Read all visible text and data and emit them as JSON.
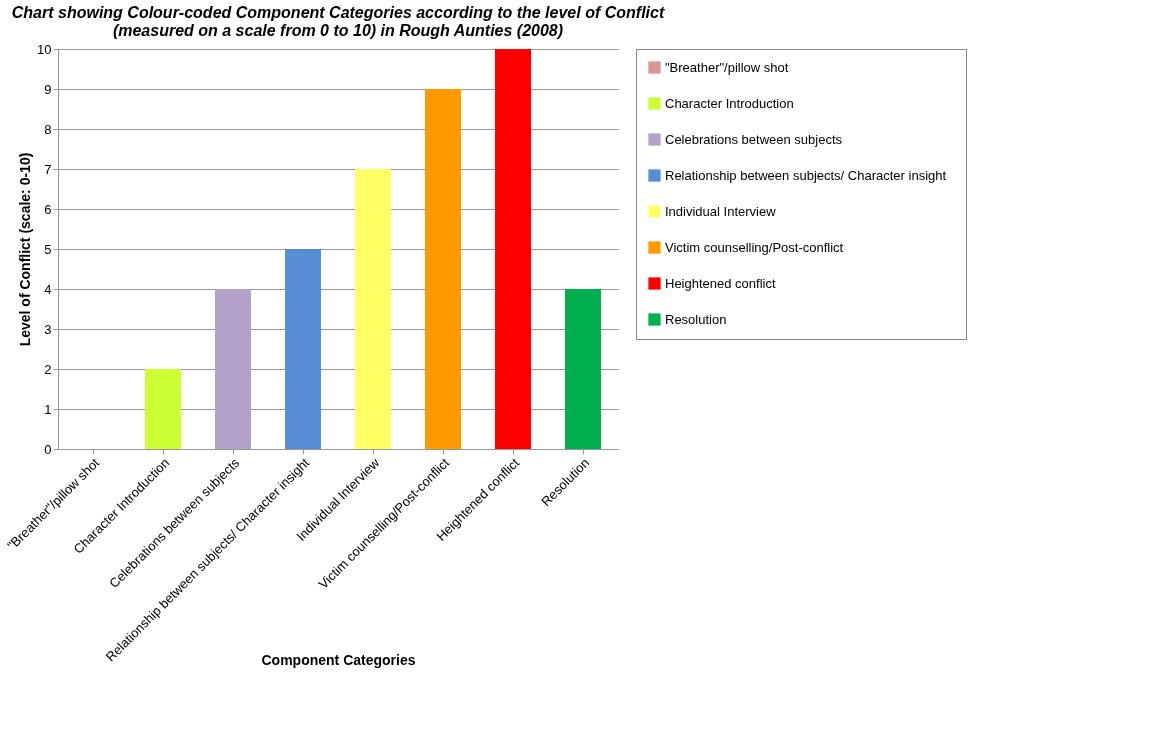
{
  "chart_data": {
    "type": "bar",
    "title": "Chart showing Colour-coded Component Categories according to the level of Conflict (measured on a scale from 0 to 10) in Rough Aunties (2008)",
    "xlabel": "Component Categories",
    "ylabel": "Level of Conflict (scale: 0-10)",
    "categories": [
      "\"Breather\"/pillow shot",
      "Character Introduction",
      "Celebrations between subjects",
      "Relationship between subjects/   Character insight",
      "Individual Interview",
      "Victim counselling/Post-conflict",
      "Heightened conflict",
      "Resolution"
    ],
    "series": [
      {
        "name": "\"Breather\"/pillow shot",
        "color": "#d99694",
        "values": [
          0,
          null,
          null,
          null,
          null,
          null,
          null,
          null
        ]
      },
      {
        "name": "Character Introduction",
        "color": "#ccff33",
        "values": [
          null,
          2,
          null,
          null,
          null,
          null,
          null,
          null
        ]
      },
      {
        "name": "Celebrations between subjects",
        "color": "#b3a2c7",
        "values": [
          null,
          null,
          4,
          null,
          null,
          null,
          null,
          null
        ]
      },
      {
        "name": "Relationship between subjects/   Character insight",
        "color": "#558ed5",
        "values": [
          null,
          null,
          null,
          5,
          null,
          null,
          null,
          null
        ]
      },
      {
        "name": "Individual Interview",
        "color": "#ffff66",
        "values": [
          null,
          null,
          null,
          null,
          7,
          null,
          null,
          null
        ]
      },
      {
        "name": "Victim counselling/Post-conflict",
        "color": "#ff9900",
        "values": [
          null,
          null,
          null,
          null,
          null,
          9,
          null,
          null
        ]
      },
      {
        "name": "Heightened conflict",
        "color": "#ff0000",
        "values": [
          null,
          null,
          null,
          null,
          null,
          null,
          10,
          null
        ]
      },
      {
        "name": "Resolution",
        "color": "#00b050",
        "values": [
          null,
          null,
          null,
          null,
          null,
          null,
          null,
          4
        ]
      }
    ],
    "ylim": [
      0,
      10
    ],
    "yticks": [
      0,
      1,
      2,
      3,
      4,
      5,
      6,
      7,
      8,
      9,
      10
    ],
    "grid": "y",
    "legend": "right"
  }
}
